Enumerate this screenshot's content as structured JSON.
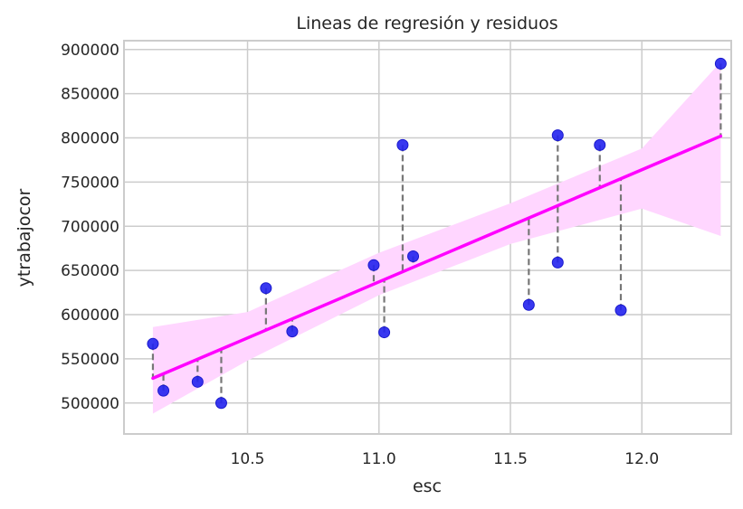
{
  "chart_data": {
    "type": "scatter",
    "title": "Lineas de regresión y residuos",
    "xlabel": "esc",
    "ylabel": "ytrabajocor",
    "xlim": [
      10.03,
      12.34
    ],
    "ylim": [
      465000,
      910000
    ],
    "xticks": [
      10.5,
      11.0,
      11.5,
      12.0
    ],
    "xtick_labels": [
      "10.5",
      "11.0",
      "11.5",
      "12.0"
    ],
    "yticks": [
      500000,
      550000,
      600000,
      650000,
      700000,
      750000,
      800000,
      850000,
      900000
    ],
    "ytick_labels": [
      "500000",
      "550000",
      "600000",
      "650000",
      "700000",
      "750000",
      "800000",
      "850000",
      "900000"
    ],
    "grid": true,
    "points": {
      "x": [
        10.14,
        10.18,
        10.31,
        10.4,
        10.57,
        10.67,
        10.98,
        11.02,
        11.09,
        11.13,
        11.57,
        11.68,
        11.68,
        11.84,
        11.92,
        12.3
      ],
      "y": [
        567000,
        514000,
        524000,
        500000,
        630000,
        581000,
        656000,
        580000,
        792000,
        666000,
        611000,
        803000,
        659000,
        792000,
        605000,
        884000
      ]
    },
    "regression": {
      "x": [
        10.14,
        12.3
      ],
      "y": [
        528000,
        802000
      ]
    },
    "confidence_band": {
      "x": [
        10.14,
        10.5,
        11.0,
        11.5,
        12.0,
        12.3
      ],
      "lower": [
        488000,
        548000,
        622000,
        680000,
        720000,
        689000
      ],
      "upper": [
        586000,
        603000,
        670000,
        726000,
        788000,
        886000
      ]
    },
    "colors": {
      "points": "#2222ee",
      "regression_line": "#ff00ff",
      "band": "#ffd6ff",
      "residual_lines": "#777777",
      "grid": "#cccccc",
      "axes_frame": "#cccccc"
    }
  }
}
